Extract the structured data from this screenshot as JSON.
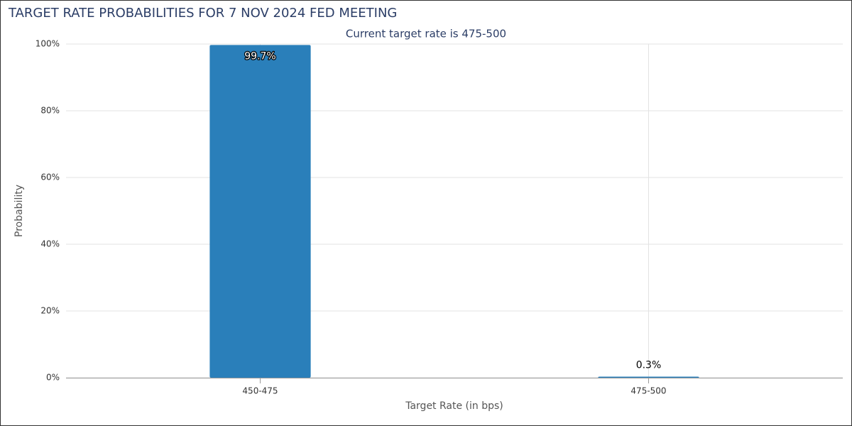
{
  "chart_data": {
    "type": "bar",
    "title": "TARGET RATE PROBABILITIES FOR 7 NOV 2024 FED MEETING",
    "subtitle": "Current target rate is 475-500",
    "x_label": "Target Rate (in bps)",
    "y_label": "Probability",
    "categories": [
      "450-475",
      "475-500"
    ],
    "values": [
      99.7,
      0.3
    ],
    "value_labels": [
      "99.7%",
      "0.3%"
    ],
    "color": "#2a7fba",
    "ylim": [
      0,
      100
    ],
    "yticks": [
      {
        "value": 0,
        "label": "0%"
      },
      {
        "value": 20,
        "label": "20%"
      },
      {
        "value": 40,
        "label": "40%"
      },
      {
        "value": 60,
        "label": "60%"
      },
      {
        "value": 80,
        "label": "80%"
      },
      {
        "value": 100,
        "label": "100%"
      }
    ],
    "grid": true
  }
}
